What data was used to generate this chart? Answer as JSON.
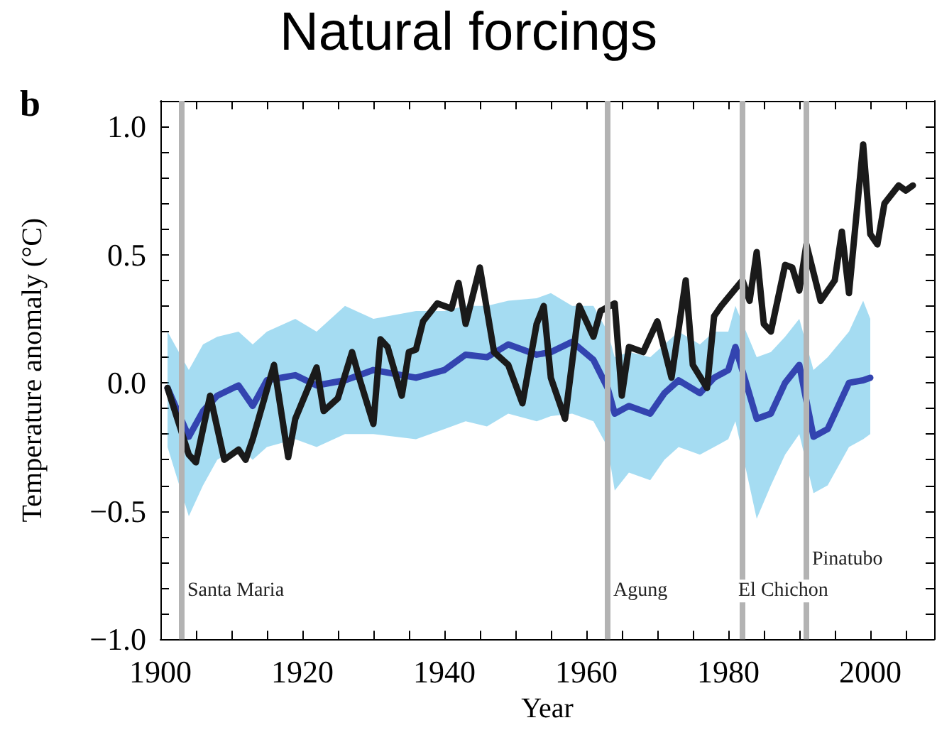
{
  "chart_data": {
    "type": "line",
    "title": "Natural forcings",
    "xlabel": "Year",
    "ylabel": "Temperature anomaly (°C)",
    "annotations": [
      "b"
    ],
    "xlim": [
      1900,
      2009
    ],
    "xticks": [
      1900,
      {
        "value": 1905,
        "label": null
      },
      {
        "value": 1910,
        "label": null
      },
      {
        "value": 1915,
        "label": null
      },
      1920,
      {
        "value": 1925,
        "label": null
      },
      {
        "value": 1930,
        "label": null
      },
      {
        "value": 1935,
        "label": null
      },
      1940,
      {
        "value": 1945,
        "label": null
      },
      {
        "value": 1950,
        "label": null
      },
      {
        "value": 1955,
        "label": null
      },
      1960,
      {
        "value": 1965,
        "label": null
      },
      {
        "value": 1970,
        "label": null
      },
      {
        "value": 1975,
        "label": null
      },
      1980,
      {
        "value": 1985,
        "label": null
      },
      {
        "value": 1990,
        "label": null
      },
      {
        "value": 1995,
        "label": null
      },
      2000,
      {
        "value": 2005,
        "label": null
      }
    ],
    "ylim": [
      -1.0,
      1.1
    ],
    "yticks": [
      {
        "value": -1,
        "label": "−1.0"
      },
      {
        "value": -0.9,
        "label": null
      },
      {
        "value": -0.8,
        "label": null
      },
      {
        "value": -0.7,
        "label": null
      },
      {
        "value": -0.6,
        "label": null
      },
      {
        "value": -0.5,
        "label": "−0.5"
      },
      {
        "value": -0.4,
        "label": null
      },
      {
        "value": -0.3,
        "label": null
      },
      {
        "value": -0.2,
        "label": null
      },
      {
        "value": -0.1,
        "label": null
      },
      {
        "value": 0,
        "label": "0.0"
      },
      {
        "value": 0.1,
        "label": null
      },
      {
        "value": 0.2,
        "label": null
      },
      {
        "value": 0.3,
        "label": null
      },
      {
        "value": 0.4,
        "label": null
      },
      {
        "value": 0.5,
        "label": "0.5"
      },
      {
        "value": 0.6,
        "label": null
      },
      {
        "value": 0.7,
        "label": null
      },
      {
        "value": 0.8,
        "label": null
      },
      {
        "value": 0.9,
        "label": null
      },
      {
        "value": 1,
        "label": "1.0"
      }
    ],
    "grid": false,
    "legend": false,
    "marker": "none",
    "line_style": "solid",
    "ref_lines": [
      {
        "axis": "x",
        "value": 1903,
        "label": "Santa Maria",
        "color": "#b3b3b3"
      },
      {
        "axis": "x",
        "value": 1963,
        "label": "Agung",
        "color": "#b3b3b3"
      },
      {
        "axis": "x",
        "value": 1982,
        "label": "El Chichon",
        "color": "#b3b3b3"
      },
      {
        "axis": "x",
        "value": 1991,
        "label": "Pinatubo",
        "color": "#b3b3b3"
      }
    ],
    "series": [
      {
        "color": "#3344b0",
        "x": [
          1901,
          1904,
          1906,
          1908,
          1911,
          1913,
          1915,
          1919,
          1922,
          1926,
          1930,
          1936,
          1940,
          1943,
          1946,
          1949,
          1953,
          1955,
          1958,
          1961,
          1963,
          1964,
          1966,
          1969,
          1971,
          1973,
          1976,
          1978,
          1980,
          1981,
          1984,
          1986,
          1988,
          1990,
          1992,
          1994,
          1997,
          1999,
          2000
        ],
        "values": [
          -0.02,
          -0.21,
          -0.11,
          -0.05,
          -0.01,
          -0.09,
          0.01,
          0.03,
          -0.01,
          0.01,
          0.05,
          0.02,
          0.05,
          0.11,
          0.1,
          0.15,
          0.11,
          0.12,
          0.16,
          0.09,
          -0.02,
          -0.12,
          -0.09,
          -0.12,
          -0.04,
          0.01,
          -0.04,
          0.02,
          0.05,
          0.14,
          -0.14,
          -0.12,
          0.0,
          0.07,
          -0.21,
          -0.18,
          0.0,
          0.01,
          0.02
        ],
        "lower": [
          -0.25,
          -0.52,
          -0.4,
          -0.3,
          -0.25,
          -0.3,
          -0.25,
          -0.22,
          -0.25,
          -0.2,
          -0.2,
          -0.22,
          -0.18,
          -0.15,
          -0.17,
          -0.12,
          -0.15,
          -0.13,
          -0.12,
          -0.15,
          -0.25,
          -0.42,
          -0.35,
          -0.38,
          -0.3,
          -0.25,
          -0.28,
          -0.25,
          -0.22,
          -0.15,
          -0.53,
          -0.4,
          -0.28,
          -0.2,
          -0.43,
          -0.4,
          -0.25,
          -0.22,
          -0.2
        ],
        "upper": [
          0.2,
          0.05,
          0.15,
          0.18,
          0.2,
          0.15,
          0.2,
          0.25,
          0.2,
          0.3,
          0.25,
          0.28,
          0.28,
          0.3,
          0.3,
          0.32,
          0.33,
          0.35,
          0.3,
          0.3,
          0.2,
          0.1,
          0.12,
          0.1,
          0.15,
          0.2,
          0.15,
          0.2,
          0.2,
          0.3,
          0.1,
          0.12,
          0.18,
          0.25,
          0.05,
          0.1,
          0.2,
          0.32,
          0.25
        ]
      },
      {
        "color": "#1a1a1a",
        "x": [
          1901,
          1904,
          1905,
          1907,
          1909,
          1911,
          1912,
          1913,
          1916,
          1918,
          1919,
          1922,
          1923,
          1925,
          1927,
          1928,
          1930,
          1931,
          1932,
          1934,
          1935,
          1936,
          1937,
          1939,
          1941,
          1942,
          1943,
          1945,
          1947,
          1949,
          1951,
          1953,
          1954,
          1955,
          1957,
          1959,
          1961,
          1962,
          1964,
          1965,
          1966,
          1968,
          1970,
          1972,
          1974,
          1975,
          1977,
          1978,
          1979,
          1982,
          1983,
          1984,
          1985,
          1986,
          1988,
          1989,
          1990,
          1991,
          1993,
          1995,
          1996,
          1997,
          1999,
          2000,
          2001,
          2002,
          2004,
          2005,
          2006
        ],
        "values": [
          -0.02,
          -0.28,
          -0.31,
          -0.05,
          -0.3,
          -0.26,
          -0.3,
          -0.22,
          0.07,
          -0.29,
          -0.14,
          0.06,
          -0.11,
          -0.06,
          0.12,
          0.02,
          -0.16,
          0.17,
          0.14,
          -0.05,
          0.12,
          0.13,
          0.24,
          0.31,
          0.29,
          0.39,
          0.23,
          0.45,
          0.12,
          0.07,
          -0.08,
          0.23,
          0.3,
          0.02,
          -0.14,
          0.3,
          0.18,
          0.28,
          0.31,
          -0.05,
          0.14,
          0.12,
          0.24,
          0.02,
          0.4,
          0.07,
          -0.02,
          0.26,
          0.3,
          0.4,
          0.32,
          0.51,
          0.23,
          0.2,
          0.46,
          0.45,
          0.36,
          0.54,
          0.32,
          0.4,
          0.59,
          0.35,
          0.93,
          0.58,
          0.54,
          0.7,
          0.77,
          0.75,
          0.77
        ]
      }
    ]
  }
}
